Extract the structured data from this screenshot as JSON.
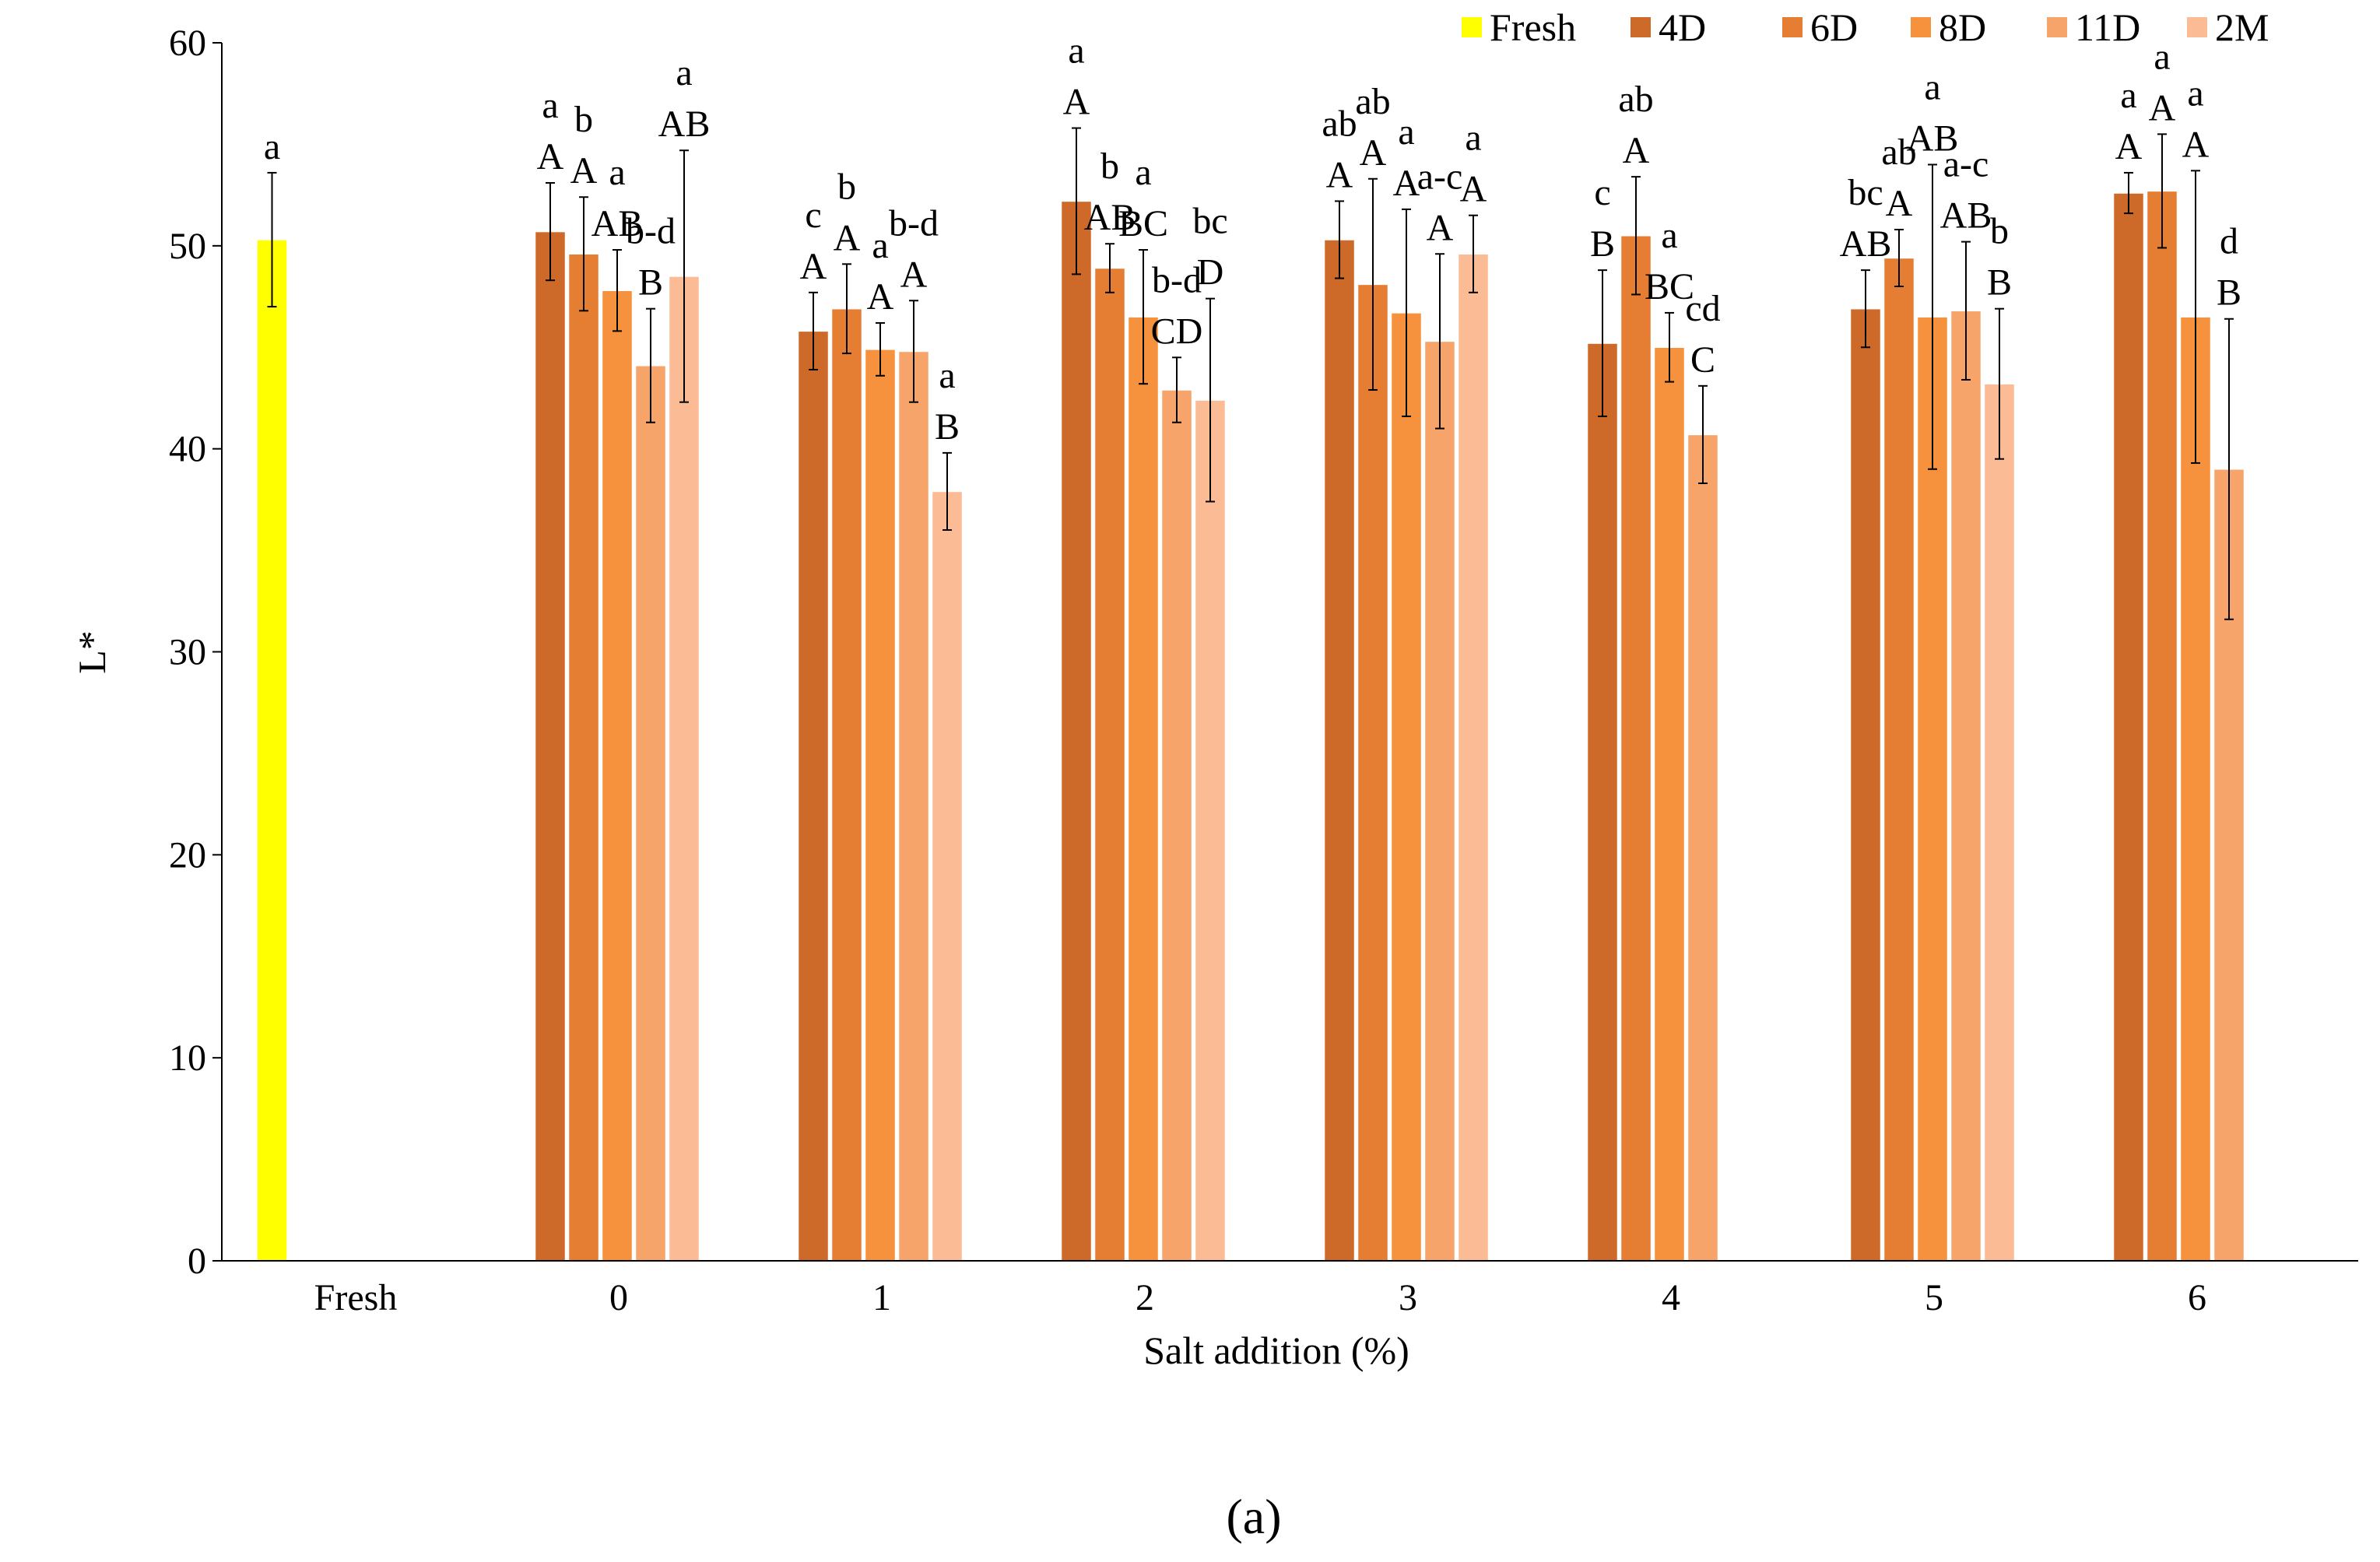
{
  "chart_data": {
    "type": "bar",
    "ylabel": "L*",
    "xlabel": "Salt addition (%)",
    "ylim": [
      0,
      60
    ],
    "yticks": [
      0,
      10,
      20,
      30,
      40,
      50,
      60
    ],
    "ytick_labels": [
      "0",
      "10",
      "20",
      "30",
      "40",
      "50",
      "60"
    ],
    "grid": false,
    "legend_position": "top-right",
    "panel_label": "(a)",
    "categories": [
      "Fresh",
      "0",
      "1",
      "2",
      "3",
      "4",
      "5",
      "6"
    ],
    "series": [
      {
        "name": "Fresh",
        "color": "#FFFF00",
        "values": [
          50.3,
          null,
          null,
          null,
          null,
          null,
          null,
          null
        ],
        "errors": [
          3.3,
          null,
          null,
          null,
          null,
          null,
          null,
          null
        ]
      },
      {
        "name": "4D",
        "color": "#CD6A2A",
        "values": [
          null,
          50.7,
          45.8,
          52.2,
          50.3,
          45.2,
          46.9,
          52.6
        ],
        "errors": [
          null,
          2.4,
          1.9,
          3.6,
          1.9,
          3.6,
          1.9,
          1.0
        ]
      },
      {
        "name": "6D",
        "color": "#E57D32",
        "values": [
          null,
          49.6,
          46.9,
          48.9,
          48.1,
          50.5,
          49.4,
          52.7
        ],
        "errors": [
          null,
          2.8,
          2.2,
          1.2,
          5.2,
          2.9,
          1.4,
          2.8
        ]
      },
      {
        "name": "8D",
        "color": "#F6913D",
        "values": [
          null,
          47.8,
          44.9,
          46.5,
          46.7,
          45.0,
          46.5,
          46.5
        ],
        "errors": [
          null,
          2.0,
          1.3,
          3.3,
          5.1,
          1.7,
          7.5,
          7.2
        ]
      },
      {
        "name": "11D",
        "color": "#F7A46A",
        "values": [
          null,
          44.1,
          44.8,
          42.9,
          45.3,
          40.7,
          46.8,
          39.0
        ],
        "errors": [
          null,
          2.8,
          2.5,
          1.6,
          4.3,
          2.4,
          3.4,
          7.4
        ]
      },
      {
        "name": "2M",
        "color": "#FBBB95",
        "values": [
          null,
          48.5,
          37.9,
          42.4,
          49.6,
          null,
          43.2,
          null
        ],
        "errors": [
          null,
          6.2,
          1.9,
          5.0,
          1.9,
          null,
          3.7,
          null
        ]
      }
    ],
    "annotations": [
      {
        "category": "Fresh",
        "series": "Fresh",
        "lines": [
          "a"
        ]
      },
      {
        "category": "0",
        "series": "4D",
        "lines": [
          "a",
          "A"
        ]
      },
      {
        "category": "0",
        "series": "6D",
        "lines": [
          "b",
          "A"
        ]
      },
      {
        "category": "0",
        "series": "8D",
        "lines": [
          "a",
          "AB"
        ]
      },
      {
        "category": "0",
        "series": "11D",
        "lines": [
          "b-d",
          "B"
        ]
      },
      {
        "category": "0",
        "series": "2M",
        "lines": [
          "a",
          "AB"
        ]
      },
      {
        "category": "1",
        "series": "4D",
        "lines": [
          "c",
          "A"
        ]
      },
      {
        "category": "1",
        "series": "6D",
        "lines": [
          "b",
          "A"
        ]
      },
      {
        "category": "1",
        "series": "8D",
        "lines": [
          "a",
          "A"
        ]
      },
      {
        "category": "1",
        "series": "11D",
        "lines": [
          "b-d",
          "A"
        ]
      },
      {
        "category": "1",
        "series": "2M",
        "lines": [
          "a",
          "B"
        ]
      },
      {
        "category": "2",
        "series": "4D",
        "lines": [
          "a",
          "A"
        ]
      },
      {
        "category": "2",
        "series": "6D",
        "lines": [
          "b",
          "AB"
        ]
      },
      {
        "category": "2",
        "series": "8D",
        "lines": [
          "a",
          "BC"
        ]
      },
      {
        "category": "2",
        "series": "11D",
        "lines": [
          "b-d",
          "CD"
        ]
      },
      {
        "category": "2",
        "series": "2M",
        "lines": [
          "bc",
          "D"
        ]
      },
      {
        "category": "3",
        "series": "4D",
        "lines": [
          "ab",
          "A"
        ]
      },
      {
        "category": "3",
        "series": "6D",
        "lines": [
          "ab",
          "A"
        ]
      },
      {
        "category": "3",
        "series": "8D",
        "lines": [
          "a",
          "A"
        ]
      },
      {
        "category": "3",
        "series": "11D",
        "lines": [
          "a-c",
          "A"
        ]
      },
      {
        "category": "3",
        "series": "2M",
        "lines": [
          "a",
          "A"
        ]
      },
      {
        "category": "4",
        "series": "4D",
        "lines": [
          "c",
          "B"
        ]
      },
      {
        "category": "4",
        "series": "6D",
        "lines": [
          "ab",
          "A"
        ]
      },
      {
        "category": "4",
        "series": "8D",
        "lines": [
          "a",
          "BC"
        ]
      },
      {
        "category": "4",
        "series": "11D",
        "lines": [
          "cd",
          "C"
        ]
      },
      {
        "category": "5",
        "series": "4D",
        "lines": [
          "bc",
          "AB"
        ]
      },
      {
        "category": "5",
        "series": "6D",
        "lines": [
          "ab",
          "A"
        ]
      },
      {
        "category": "5",
        "series": "8D",
        "lines": [
          "a",
          "AB"
        ]
      },
      {
        "category": "5",
        "series": "11D",
        "lines": [
          "a-c",
          "AB"
        ]
      },
      {
        "category": "5",
        "series": "2M",
        "lines": [
          "b",
          "B"
        ]
      },
      {
        "category": "6",
        "series": "4D",
        "lines": [
          "a",
          "A"
        ]
      },
      {
        "category": "6",
        "series": "6D",
        "lines": [
          "a",
          "A"
        ]
      },
      {
        "category": "6",
        "series": "8D",
        "lines": [
          "a",
          "A"
        ]
      },
      {
        "category": "6",
        "series": "11D",
        "lines": [
          "d",
          "B"
        ]
      }
    ]
  }
}
